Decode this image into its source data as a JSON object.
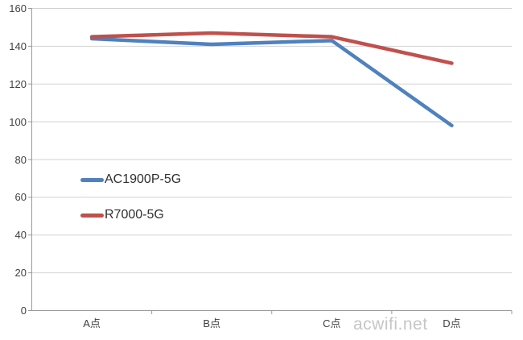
{
  "chart_data": {
    "type": "line",
    "title": "",
    "xlabel": "",
    "ylabel": "",
    "categories": [
      "A点",
      "B点",
      "C点",
      "D点"
    ],
    "series": [
      {
        "name": "AC1900P-5G",
        "color": "#4F81BD",
        "values": [
          144,
          141,
          143,
          98
        ]
      },
      {
        "name": "R7000-5G",
        "color": "#C0504D",
        "values": [
          145,
          147,
          145,
          131
        ]
      }
    ],
    "ylim": [
      0,
      160
    ],
    "yticks": [
      0,
      20,
      40,
      60,
      80,
      100,
      120,
      140,
      160
    ],
    "grid": "horizontal",
    "legend_position": "inside-left-middle"
  },
  "watermark": {
    "text": "acwifi.net",
    "color": "#c6c6c6"
  },
  "style": {
    "grid_color": "#d2d2d2",
    "axis_color": "#9a9a9a",
    "label_color": "#3f3f3f",
    "line_width": 4.5
  }
}
